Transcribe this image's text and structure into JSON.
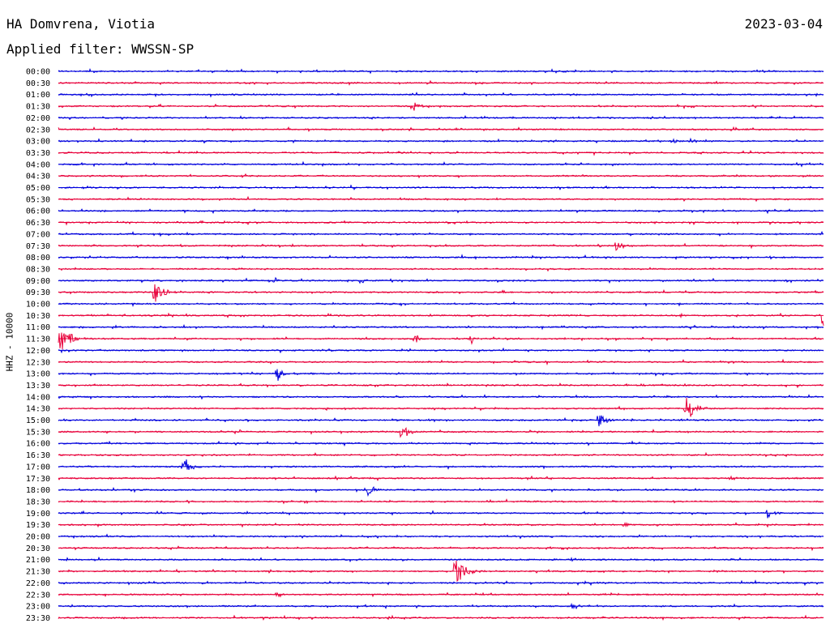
{
  "header": {
    "station": "HA Domvrena, Viotia",
    "date": "2023-03-04",
    "filter": "Applied filter: WWSSN-SP"
  },
  "chart_data": {
    "type": "line",
    "title": "HA Domvrena, Viotia",
    "subtitle": "Applied filter: WWSSN-SP",
    "ylabel": "HHZ - 10000",
    "xlabel": "",
    "time_labels": [
      "00:00",
      "00:30",
      "01:00",
      "01:30",
      "02:00",
      "02:30",
      "03:00",
      "03:30",
      "04:00",
      "04:30",
      "05:00",
      "05:30",
      "06:00",
      "06:30",
      "07:00",
      "07:30",
      "08:00",
      "08:30",
      "09:00",
      "09:30",
      "10:00",
      "10:30",
      "11:00",
      "11:30",
      "12:00",
      "12:30",
      "13:00",
      "13:30",
      "14:00",
      "14:30",
      "15:00",
      "15:30",
      "16:00",
      "16:30",
      "17:00",
      "17:30",
      "18:00",
      "18:30",
      "19:00",
      "19:30",
      "20:00",
      "20:30",
      "21:00",
      "21:30",
      "22:00",
      "22:30",
      "23:00",
      "23:30"
    ],
    "colors": [
      "#0000dd",
      "#e8003a"
    ],
    "grid": false,
    "events": [
      {
        "row": "01:30",
        "minute": 13.9,
        "amplitude": 0.4
      },
      {
        "row": "03:00",
        "minute": 24.1,
        "amplitude": 0.2
      },
      {
        "row": "03:00",
        "minute": 24.8,
        "amplitude": 0.2
      },
      {
        "row": "07:30",
        "minute": 21.9,
        "amplitude": 0.5
      },
      {
        "row": "09:00",
        "minute": 8.5,
        "amplitude": 0.25
      },
      {
        "row": "09:00",
        "minute": 11.9,
        "amplitude": 0.25
      },
      {
        "row": "09:30",
        "minute": 3.8,
        "amplitude": 0.75
      },
      {
        "row": "10:30",
        "minute": 30.0,
        "amplitude": 1.0
      },
      {
        "row": "11:30",
        "minute": 0.05,
        "amplitude": 1.0
      },
      {
        "row": "11:30",
        "minute": 14.0,
        "amplitude": 0.3
      },
      {
        "row": "11:30",
        "minute": 16.2,
        "amplitude": 0.3
      },
      {
        "row": "13:00",
        "minute": 8.6,
        "amplitude": 0.45
      },
      {
        "row": "14:30",
        "minute": 24.6,
        "amplitude": 0.85
      },
      {
        "row": "15:00",
        "minute": 21.2,
        "amplitude": 0.6
      },
      {
        "row": "15:30",
        "minute": 13.5,
        "amplitude": 0.6
      },
      {
        "row": "17:00",
        "minute": 4.9,
        "amplitude": 0.65
      },
      {
        "row": "17:30",
        "minute": 26.4,
        "amplitude": 0.2
      },
      {
        "row": "18:00",
        "minute": 12.1,
        "amplitude": 0.55
      },
      {
        "row": "19:00",
        "minute": 27.8,
        "amplitude": 0.4
      },
      {
        "row": "19:30",
        "minute": 22.2,
        "amplitude": 0.2
      },
      {
        "row": "21:00",
        "minute": 20.2,
        "amplitude": 0.2
      },
      {
        "row": "21:30",
        "minute": 15.6,
        "amplitude": 0.9
      },
      {
        "row": "22:30",
        "minute": 8.6,
        "amplitude": 0.25
      },
      {
        "row": "23:00",
        "minute": 20.2,
        "amplitude": 0.25
      }
    ]
  }
}
